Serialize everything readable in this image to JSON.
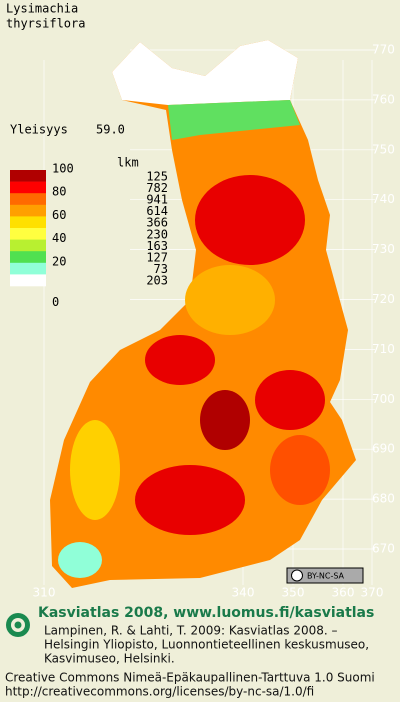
{
  "title": [
    "Lysimachia",
    "thyrsiflora"
  ],
  "frequency": {
    "label": "Yleisyys",
    "value": "59.0"
  },
  "legend": {
    "scale": [
      100,
      80,
      60,
      40,
      20,
      0
    ],
    "count_header": "lkm",
    "counts": [
      125,
      782,
      941,
      614,
      366,
      230,
      163,
      127,
      73,
      203
    ],
    "colors": [
      "#b00000",
      "#ff0000",
      "#ff6a00",
      "#ff9f00",
      "#ffe000",
      "#ffff40",
      "#b8f030",
      "#50e050",
      "#90ffd8",
      "#ffffff"
    ]
  },
  "grid": {
    "northing": [
      770,
      760,
      750,
      740,
      730,
      720,
      710,
      700,
      690,
      680,
      670
    ],
    "easting": [
      310,
      340,
      350,
      360,
      370
    ]
  },
  "badge": "BY-NC-SA",
  "footer": {
    "heading": "Kasviatlas 2008, www.luomus.fi/kasviatlas",
    "citation": [
      "Lampinen, R. & Lahti, T. 2009: Kasviatlas 2008. –",
      "Helsingin Yliopisto, Luonnontieteellinen keskusmuseo,",
      "Kasvimuseo, Helsinki."
    ],
    "license": [
      "Creative Commons Nimeä-Epäkaupallinen-Tarttuva 1.0 Suomi",
      "http://creativecommons.org/licenses/by-nc-sa/1.0/fi"
    ]
  }
}
